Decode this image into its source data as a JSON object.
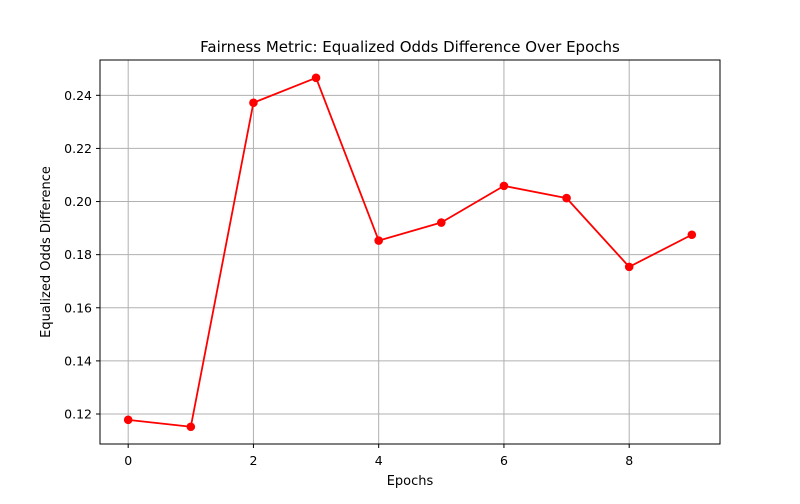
{
  "chart_data": {
    "type": "line",
    "title": "Fairness Metric: Equalized Odds Difference Over Epochs",
    "xlabel": "Epochs",
    "ylabel": "Equalized Odds Difference",
    "x": [
      0,
      1,
      2,
      3,
      4,
      5,
      6,
      7,
      8,
      9
    ],
    "series": [
      {
        "values": [
          0.1178,
          0.1152,
          0.2372,
          0.2466,
          0.1853,
          0.1921,
          0.2059,
          0.2013,
          0.1754,
          0.1875
        ],
        "color": "#ff0000",
        "marker": "circle"
      }
    ],
    "xlim": [
      -0.45,
      9.45
    ],
    "ylim": [
      0.1087,
      0.2533
    ],
    "xticks": [
      0,
      2,
      4,
      6,
      8
    ],
    "xtick_labels": [
      "0",
      "2",
      "4",
      "6",
      "8"
    ],
    "yticks": [
      0.12,
      0.14,
      0.16,
      0.18,
      0.2,
      0.22,
      0.24
    ],
    "ytick_labels": [
      "0.12",
      "0.14",
      "0.16",
      "0.18",
      "0.20",
      "0.22",
      "0.24"
    ],
    "grid": true,
    "grid_color": "#b0b0b0",
    "legend": false
  }
}
